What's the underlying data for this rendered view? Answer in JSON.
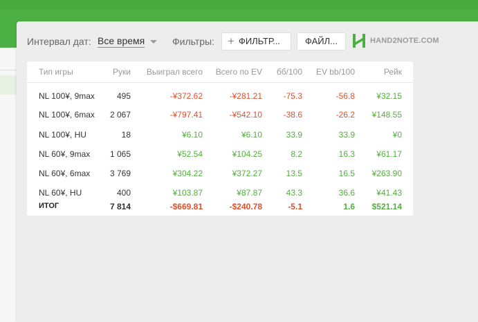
{
  "toolbar": {
    "date_label": "Интервал дат:",
    "date_value": "Все время",
    "filters_label": "Фильтры:",
    "filter_button": "ФИЛЬТР...",
    "file_button": "ФАЙЛ...",
    "logo_text": "HAND2NOTE.COM",
    "logo_icon": "hand2note-h-icon"
  },
  "table": {
    "headers": {
      "game": "Тип игры",
      "hands": "Руки",
      "won": "Выиграл всего",
      "ev_total": "Всего по EV",
      "bb100": "бб/100",
      "ev_bb100": "EV bb/100",
      "rake": "Рейк"
    },
    "rows": [
      {
        "game": "NL 100¥, 9max",
        "hands": "495",
        "won": "-¥372.62",
        "ev_total": "-¥281.21",
        "bb100": "-75.3",
        "ev_bb100": "-56.8",
        "rake": "¥32.15"
      },
      {
        "game": "NL 100¥, 6max",
        "hands": "2 067",
        "won": "-¥797.41",
        "ev_total": "-¥542.10",
        "bb100": "-38.6",
        "ev_bb100": "-26.2",
        "rake": "¥148.55"
      },
      {
        "game": "NL 100¥, HU",
        "hands": "18",
        "won": "¥6.10",
        "ev_total": "¥6.10",
        "bb100": "33.9",
        "ev_bb100": "33.9",
        "rake": "¥0"
      },
      {
        "game": "NL 60¥, 9max",
        "hands": "1 065",
        "won": "¥52.54",
        "ev_total": "¥104.25",
        "bb100": "8.2",
        "ev_bb100": "16.3",
        "rake": "¥61.17"
      },
      {
        "game": "NL 60¥, 6max",
        "hands": "3 769",
        "won": "¥304.22",
        "ev_total": "¥372.27",
        "bb100": "13.5",
        "ev_bb100": "16.5",
        "rake": "¥263.90"
      },
      {
        "game": "NL 60¥, HU",
        "hands": "400",
        "won": "¥103.87",
        "ev_total": "¥87.87",
        "bb100": "43.3",
        "ev_bb100": "36.6",
        "rake": "¥41.43"
      }
    ],
    "total": {
      "game": "ИТОГ",
      "hands": "7 814",
      "won": "-$669.81",
      "ev_total": "-$240.78",
      "bb100": "-5.1",
      "ev_bb100": "1.6",
      "rake": "$521.14"
    }
  },
  "colors": {
    "negative": "#e0502a",
    "positive": "#52ae3d",
    "brand_green": "#4caf43"
  }
}
